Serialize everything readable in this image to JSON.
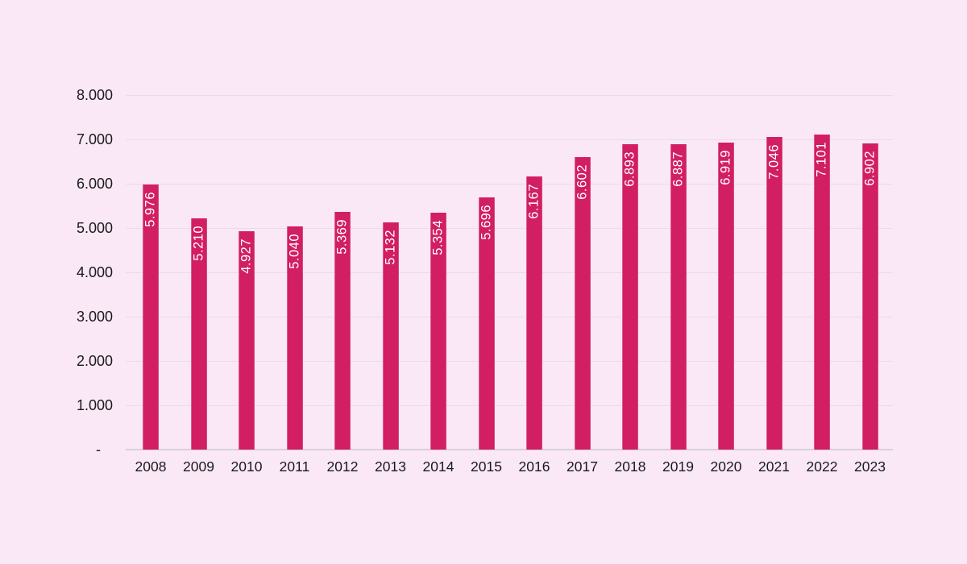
{
  "chart_data": {
    "type": "bar",
    "title": "",
    "xlabel": "",
    "ylabel": "",
    "categories": [
      "2008",
      "2009",
      "2010",
      "2011",
      "2012",
      "2013",
      "2014",
      "2015",
      "2016",
      "2017",
      "2018",
      "2019",
      "2020",
      "2021",
      "2022",
      "2023"
    ],
    "values": [
      5976,
      5210,
      4927,
      5040,
      5369,
      5132,
      5354,
      5696,
      6167,
      6602,
      6893,
      6887,
      6919,
      7046,
      7101,
      6902
    ],
    "value_labels": [
      "5.976",
      "5.210",
      "4.927",
      "5.040",
      "5.369",
      "5.132",
      "5.354",
      "5.696",
      "6.167",
      "6.602",
      "6.893",
      "6.887",
      "6.919",
      "7.046",
      "7.101",
      "6.902"
    ],
    "ylim": [
      0,
      8000
    ],
    "y_tick_interval": 1000,
    "y_tick_labels": [
      "8.000",
      "7.000",
      "6.000",
      "5.000",
      "4.000",
      "3.000",
      "2.000",
      "1.000",
      "-"
    ],
    "grid": true,
    "legend": null,
    "colors": {
      "background": "#FAE8F7",
      "bar": "#D21E63",
      "bar_label_text": "#FFFFFF",
      "gridline": "#E7DCE7",
      "axis_line": "#D8D0D8",
      "tick_text": "#1A1A1A"
    }
  }
}
